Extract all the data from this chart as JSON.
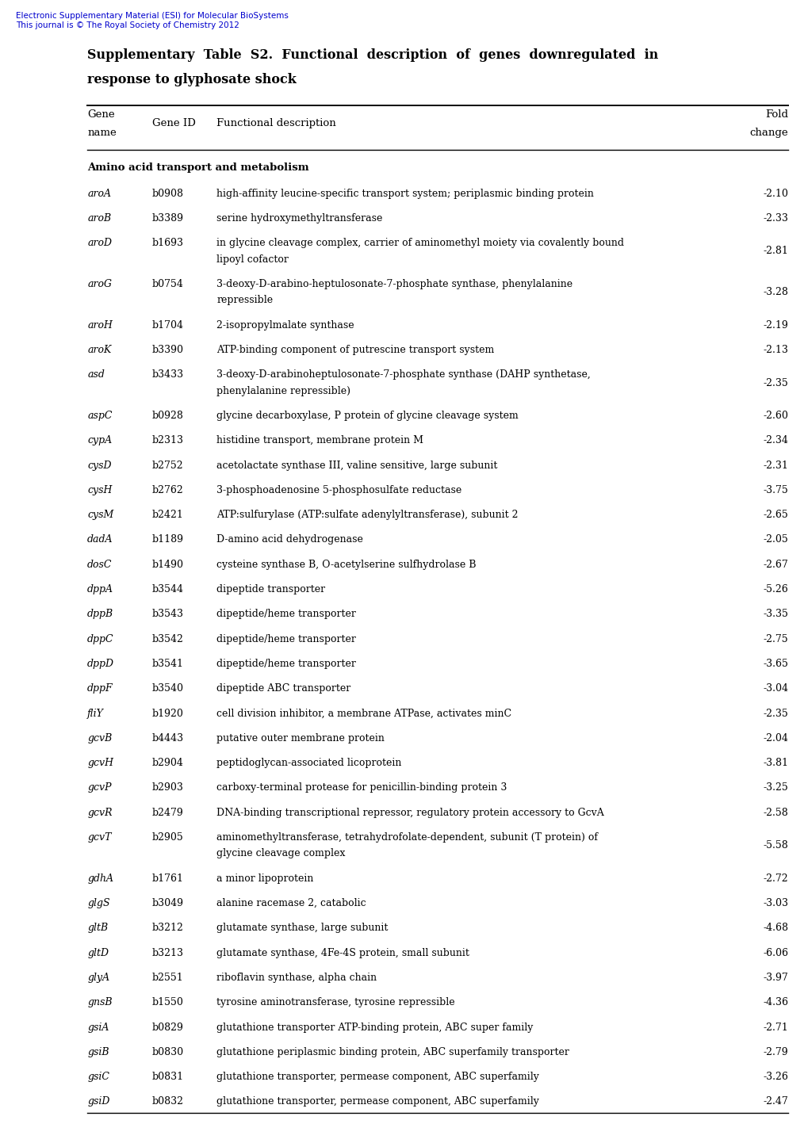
{
  "header_text_line1": "Electronic Supplementary Material (ESI) for Molecular BioSystems",
  "header_text_line2": "This journal is © The Royal Society of Chemistry 2012",
  "title_line1": "Supplementary  Table  S2.  Functional  description  of  genes  downregulated  in",
  "title_line2": "response to glyphosate shock",
  "rows": [
    [
      "aroA",
      "b0908",
      "high-affinity leucine-specific transport system; periplasmic binding protein",
      "-2.10"
    ],
    [
      "aroB",
      "b3389",
      "serine hydroxymethyltransferase",
      "-2.33"
    ],
    [
      "aroD",
      "b1693",
      "in glycine cleavage complex, carrier of aminomethyl moiety via covalently bound\nlipoyl cofactor",
      "-2.81"
    ],
    [
      "aroG",
      "b0754",
      "3-deoxy-D-arabino-heptulosonate-7-phosphate synthase, phenylalanine\nrepressible",
      "-3.28"
    ],
    [
      "aroH",
      "b1704",
      "2-isopropylmalate synthase",
      "-2.19"
    ],
    [
      "aroK",
      "b3390",
      "ATP-binding component of putrescine transport system",
      "-2.13"
    ],
    [
      "asd",
      "b3433",
      "3-deoxy-D-arabinoheptulosonate-7-phosphate synthase (DAHP synthetase,\nphenylalanine repressible)",
      "-2.35"
    ],
    [
      "aspC",
      "b0928",
      "glycine decarboxylase, P protein of glycine cleavage system",
      "-2.60"
    ],
    [
      "cypA",
      "b2313",
      "histidine transport, membrane protein M",
      "-2.34"
    ],
    [
      "cysD",
      "b2752",
      "acetolactate synthase III, valine sensitive, large subunit",
      "-2.31"
    ],
    [
      "cysH",
      "b2762",
      "3-phosphoadenosine 5-phosphosulfate reductase",
      "-3.75"
    ],
    [
      "cysM",
      "b2421",
      "ATP:sulfurylase (ATP:sulfate adenylyltransferase), subunit 2",
      "-2.65"
    ],
    [
      "dadA",
      "b1189",
      "D-amino acid dehydrogenase",
      "-2.05"
    ],
    [
      "dosC",
      "b1490",
      "cysteine synthase B, O-acetylserine sulfhydrolase B",
      "-2.67"
    ],
    [
      "dppA",
      "b3544",
      "dipeptide transporter",
      "-5.26"
    ],
    [
      "dppB",
      "b3543",
      "dipeptide/heme transporter",
      "-3.35"
    ],
    [
      "dppC",
      "b3542",
      "dipeptide/heme transporter",
      "-2.75"
    ],
    [
      "dppD",
      "b3541",
      "dipeptide/heme transporter",
      "-3.65"
    ],
    [
      "dppF",
      "b3540",
      "dipeptide ABC transporter",
      "-3.04"
    ],
    [
      "fliY",
      "b1920",
      "cell division inhibitor, a membrane ATPase, activates minC",
      "-2.35"
    ],
    [
      "gcvB",
      "b4443",
      "putative outer membrane protein",
      "-2.04"
    ],
    [
      "gcvH",
      "b2904",
      "peptidoglycan-associated licoprotein",
      "-3.81"
    ],
    [
      "gcvP",
      "b2903",
      "carboxy-terminal protease for penicillin-binding protein 3",
      "-3.25"
    ],
    [
      "gcvR",
      "b2479",
      "DNA-binding transcriptional repressor, regulatory protein accessory to GcvA",
      "-2.58"
    ],
    [
      "gcvT",
      "b2905",
      "aminomethyltransferase, tetrahydrofolate-dependent, subunit (T protein) of\nglycine cleavage complex",
      "-5.58"
    ],
    [
      "gdhA",
      "b1761",
      "a minor lipoprotein",
      "-2.72"
    ],
    [
      "glgS",
      "b3049",
      "alanine racemase 2, catabolic",
      "-3.03"
    ],
    [
      "gltB",
      "b3212",
      "glutamate synthase, large subunit",
      "-4.68"
    ],
    [
      "gltD",
      "b3213",
      "glutamate synthase, 4Fe-4S protein, small subunit",
      "-6.06"
    ],
    [
      "glyA",
      "b2551",
      "riboflavin synthase, alpha chain",
      "-3.97"
    ],
    [
      "gnsB",
      "b1550",
      "tyrosine aminotransferase, tyrosine repressible",
      "-4.36"
    ],
    [
      "gsiA",
      "b0829",
      "glutathione transporter ATP-binding protein, ABC super family",
      "-2.71"
    ],
    [
      "gsiB",
      "b0830",
      "glutathione periplasmic binding protein, ABC superfamily transporter",
      "-2.79"
    ],
    [
      "gsiC",
      "b0831",
      "glutathione transporter, permease component, ABC superfamily",
      "-3.26"
    ],
    [
      "gsiD",
      "b0832",
      "glutathione transporter, permease component, ABC superfamily",
      "-2.47"
    ]
  ],
  "header_color": "#0000CD",
  "bg_color": "#FFFFFF",
  "text_color": "#000000",
  "title_fontsize": 11.5,
  "header_fontsize": 9.5,
  "body_fontsize": 9.0,
  "section_fontsize": 9.5
}
